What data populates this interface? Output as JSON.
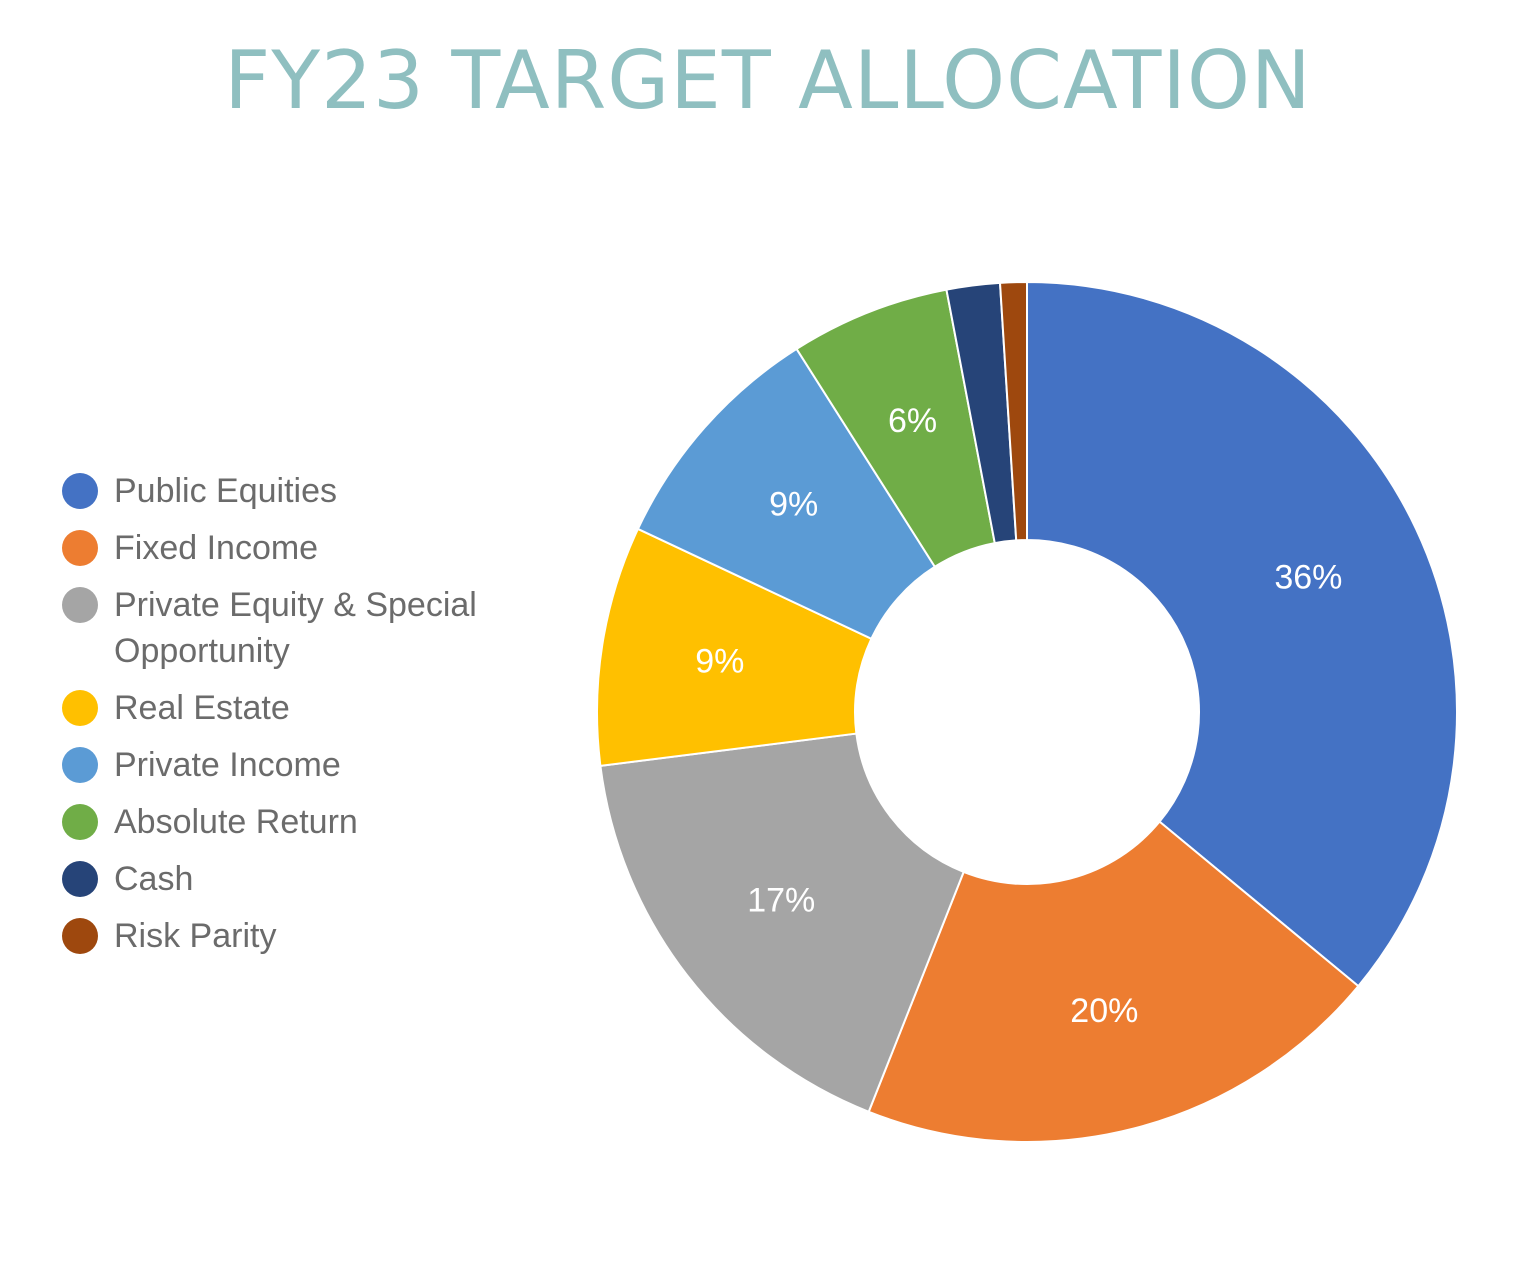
{
  "chart_data": {
    "type": "pie",
    "title": "FY23 TARGET ALLOCATION",
    "donut": true,
    "legend_position": "left",
    "slices": [
      {
        "name": "Public Equities",
        "value": 36,
        "label": "36%",
        "color": "#4472c4"
      },
      {
        "name": "Fixed Income",
        "value": 20,
        "label": "20%",
        "color": "#ed7d31"
      },
      {
        "name": "Private Equity & Special Opportunity",
        "value": 17,
        "label": "17%",
        "color": "#a5a5a5"
      },
      {
        "name": "Real Estate",
        "value": 9,
        "label": "9%",
        "color": "#ffc000"
      },
      {
        "name": "Private Income",
        "value": 9,
        "label": "9%",
        "color": "#5b9bd5"
      },
      {
        "name": "Absolute Return",
        "value": 6,
        "label": "6%",
        "color": "#70ad47"
      },
      {
        "name": "Cash",
        "value": 2,
        "label": "",
        "color": "#264478"
      },
      {
        "name": "Risk Parity",
        "value": 1,
        "label": "",
        "color": "#9e480e"
      }
    ]
  }
}
